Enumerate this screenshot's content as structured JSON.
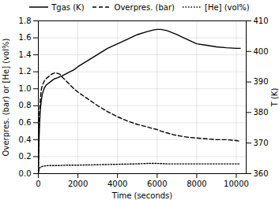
{
  "chart_data": {
    "type": "line",
    "xlabel": "Time (seconds)",
    "ylabel": "Overpres. (bar) or [He] (vol%)",
    "y2label": "T (K)",
    "xlim": [
      0,
      10500
    ],
    "ylim": [
      0,
      1.8
    ],
    "y2lim": [
      360,
      410
    ],
    "xticks": [
      0,
      2000,
      4000,
      6000,
      8000,
      10000
    ],
    "yticks": [
      {
        "value": 0,
        "label": "0.0"
      },
      0.2,
      0.4,
      0.6,
      0.8,
      {
        "value": 1,
        "label": "1.0"
      },
      1.2,
      1.4,
      1.6,
      1.8
    ],
    "y2ticks": [
      360,
      370,
      380,
      390,
      400,
      410
    ],
    "grid": true,
    "legend": "top",
    "series": [
      {
        "name": "Tgas (K)",
        "color": "black",
        "line_style": "solid",
        "axis": "y2",
        "x": [
          0,
          30,
          60,
          100,
          150,
          200,
          300,
          400,
          500,
          600,
          700,
          800,
          900,
          1000,
          1100,
          1200,
          1500,
          1800,
          2000,
          2500,
          3000,
          3500,
          4000,
          4500,
          5000,
          5500,
          5800,
          6000,
          6200,
          6500,
          7000,
          7500,
          8000,
          8500,
          9000,
          9500,
          10000,
          10200
        ],
        "values": [
          360,
          370,
          376,
          381,
          384,
          386,
          388,
          389,
          389.5,
          390,
          390.5,
          391,
          391.2,
          391.4,
          391.8,
          392,
          393,
          394,
          395,
          397,
          399,
          401,
          402.5,
          404,
          405.5,
          406.5,
          407,
          407.2,
          407.2,
          406.8,
          405.5,
          404,
          402.5,
          402,
          401.5,
          401.2,
          401,
          401
        ]
      },
      {
        "name": "Overpres. (bar)",
        "color": "black",
        "line_style": "dashed",
        "x": [
          0,
          30,
          60,
          100,
          150,
          200,
          300,
          400,
          500,
          600,
          700,
          800,
          900,
          1000,
          1100,
          1200,
          1500,
          1800,
          2000,
          2500,
          3000,
          3500,
          4000,
          4500,
          5000,
          5500,
          5800,
          6000,
          6200,
          6500,
          6800,
          7000,
          7500,
          8000,
          8500,
          9000,
          9500,
          10000,
          10200
        ],
        "values": [
          0.02,
          0.45,
          0.72,
          0.88,
          0.99,
          1.04,
          1.09,
          1.12,
          1.14,
          1.16,
          1.175,
          1.185,
          1.185,
          1.18,
          1.17,
          1.14,
          1.07,
          1.0,
          0.96,
          0.88,
          0.8,
          0.73,
          0.67,
          0.62,
          0.58,
          0.55,
          0.53,
          0.52,
          0.5,
          0.48,
          0.46,
          0.45,
          0.43,
          0.42,
          0.41,
          0.4,
          0.4,
          0.39,
          0.38
        ]
      },
      {
        "name": "[He] (vol%)",
        "color": "black",
        "line_style": "dotted",
        "x": [
          0,
          30,
          60,
          100,
          200,
          300,
          500,
          700,
          1000,
          1500,
          2000,
          3000,
          4000,
          5000,
          5500,
          6000,
          6500,
          7000,
          8000,
          9000,
          10000,
          10200
        ],
        "values": [
          0.0,
          0.04,
          0.065,
          0.075,
          0.085,
          0.09,
          0.095,
          0.095,
          0.095,
          0.1,
          0.1,
          0.105,
          0.11,
          0.115,
          0.12,
          0.12,
          0.115,
          0.115,
          0.115,
          0.115,
          0.115,
          0.115
        ]
      }
    ]
  }
}
